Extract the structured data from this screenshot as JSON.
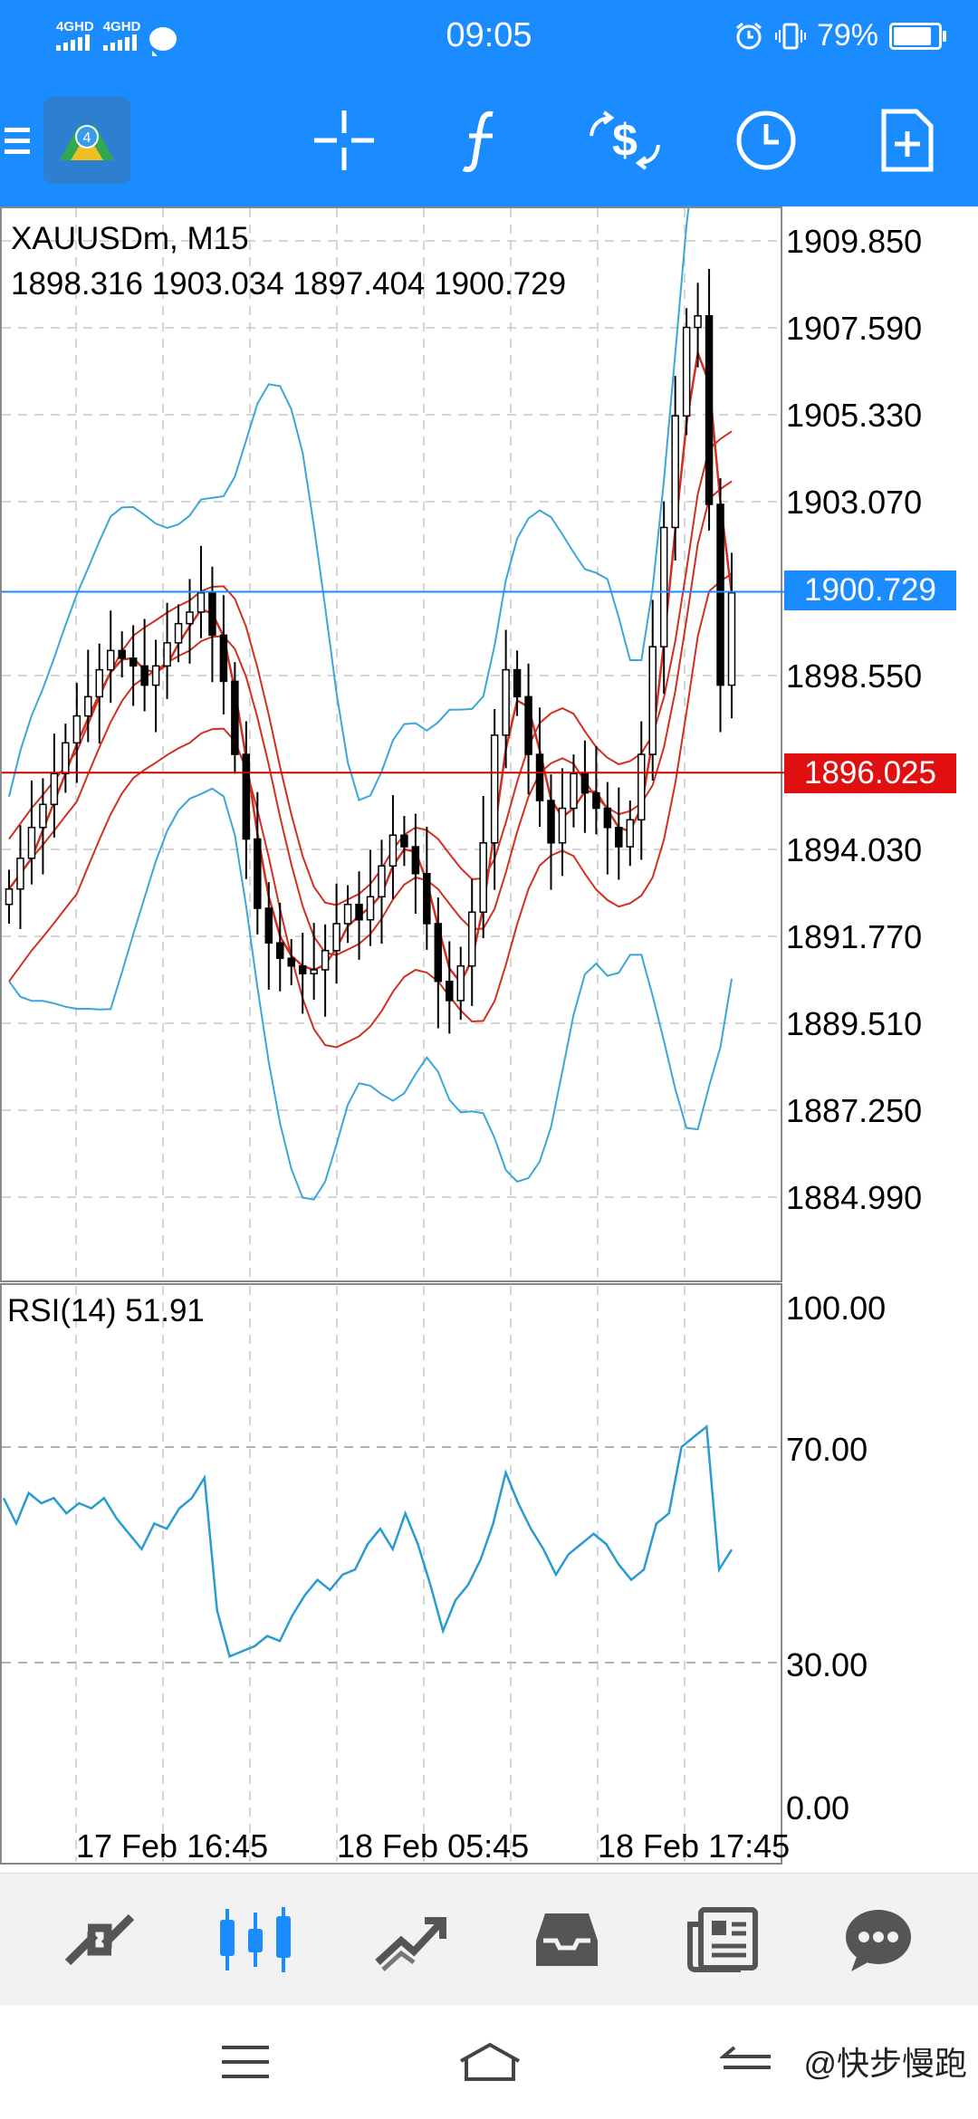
{
  "status_bar": {
    "time": "09:05",
    "battery": "79%",
    "signal_1": "4GHD",
    "signal_2": "4GHD"
  },
  "colors": {
    "accent": "#1a8cff",
    "bid_line": "#cc0000",
    "ask_line": "#1a8cff",
    "bollinger": "#3aa7d8",
    "moving_average": "#d03020",
    "rsi_line": "#2a9bd1"
  },
  "toolbar": {
    "icons": [
      "menu-icon",
      "metatrader-logo",
      "crosshair-icon",
      "indicators-icon",
      "symbol-change-icon",
      "timeframe-icon",
      "new-order-icon"
    ]
  },
  "chart": {
    "symbol_timeframe": "XAUUSDm, M15",
    "ohlc": "1898.316 1903.034 1897.404 1900.729",
    "price_axis": [
      "1909.850",
      "1907.590",
      "1905.330",
      "1903.070",
      "1898.550",
      "1894.030",
      "1891.770",
      "1889.510",
      "1887.250",
      "1884.990"
    ],
    "ask_price": "1900.729",
    "bid_price": "1896.025",
    "rsi_label": "RSI(14) 51.91",
    "rsi_axis": [
      "100.00",
      "70.00",
      "30.00",
      "0.00"
    ],
    "time_axis": [
      "17 Feb 16:45",
      "18 Feb 05:45",
      "18 Feb 17:45"
    ]
  },
  "chart_data": [
    {
      "type": "candlestick",
      "title": "XAUUSDm, M15",
      "ylim": [
        1883.5,
        1911.0
      ],
      "last_close": 1900.729,
      "bid": 1896.025,
      "close_path": [
        1893.0,
        1893.8,
        1894.6,
        1895.2,
        1896.0,
        1896.8,
        1897.5,
        1898.0,
        1898.7,
        1899.2,
        1899.0,
        1898.8,
        1898.3,
        1898.8,
        1899.4,
        1899.9,
        1900.2,
        1900.7,
        1899.6,
        1898.4,
        1896.5,
        1894.3,
        1892.5,
        1891.6,
        1891.2,
        1891.0,
        1890.8,
        1890.9,
        1891.4,
        1892.1,
        1892.6,
        1892.2,
        1892.8,
        1893.6,
        1894.4,
        1894.1,
        1893.4,
        1892.1,
        1890.6,
        1890.1,
        1891.0,
        1892.4,
        1894.2,
        1897.0,
        1898.7,
        1898.0,
        1896.5,
        1895.3,
        1894.2,
        1895.1,
        1896.0,
        1895.5,
        1895.1,
        1894.6,
        1894.1,
        1894.8,
        1896.5,
        1899.3,
        1902.4,
        1905.3,
        1907.6,
        1907.9,
        1903.0,
        1898.3,
        1900.7
      ]
    },
    {
      "type": "line",
      "title": "RSI(14) 51.91",
      "ylim": [
        0,
        100
      ],
      "values": [
        62,
        57,
        63,
        61,
        62,
        59,
        61,
        60,
        62,
        58,
        55,
        52,
        57,
        56,
        60,
        62,
        66,
        40,
        31,
        32,
        33,
        35,
        34,
        39,
        43,
        46,
        44,
        47,
        48,
        53,
        56,
        52,
        59,
        53,
        45,
        36,
        42,
        45,
        50,
        57,
        67,
        61,
        56,
        52,
        47,
        51,
        53,
        55,
        53,
        49,
        46,
        48,
        57,
        59,
        72,
        74,
        76,
        48,
        51.91
      ]
    }
  ],
  "bottom_nav": {
    "icons": [
      "quotes-icon",
      "chart-icon",
      "trade-icon",
      "history-icon",
      "news-icon",
      "messages-icon"
    ]
  },
  "system_nav": {
    "icons": [
      "recent-apps-icon",
      "home-icon",
      "back-icon"
    ]
  },
  "watermark": "@快步慢跑"
}
